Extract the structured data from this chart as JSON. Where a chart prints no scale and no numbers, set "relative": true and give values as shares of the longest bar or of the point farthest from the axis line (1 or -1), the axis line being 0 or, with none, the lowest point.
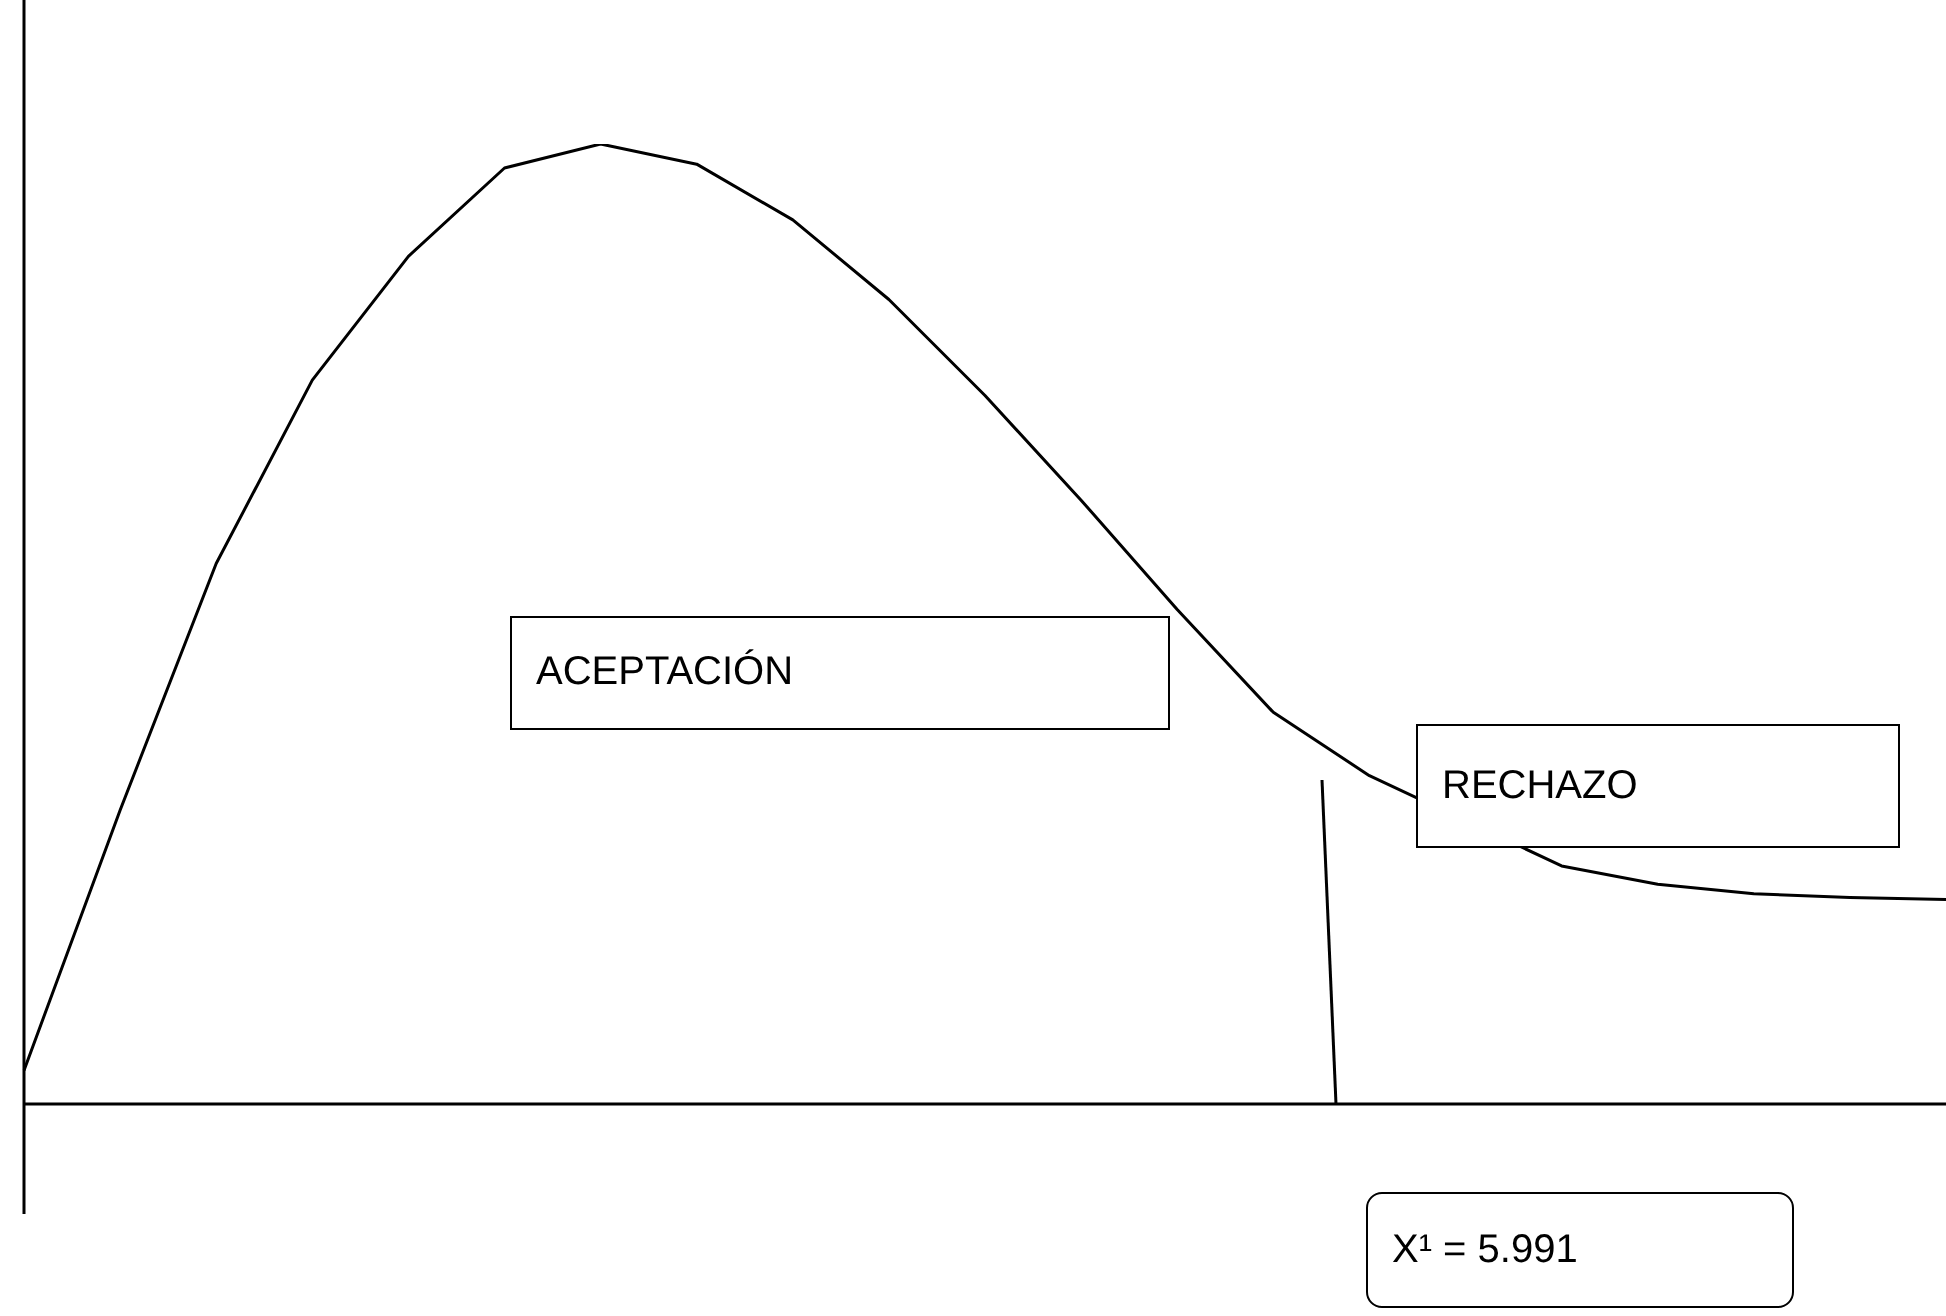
{
  "chart_data": {
    "type": "line",
    "relative": true,
    "legend": false,
    "marker": "none",
    "line_style": "solid",
    "categories": [
      null,
      null,
      null,
      null,
      null,
      null,
      null,
      null,
      null,
      null,
      null,
      null,
      null,
      null,
      null,
      null,
      null,
      null,
      null,
      null,
      null
    ],
    "series": [
      {
        "color": "#000000",
        "values": [
          0.035,
          0.306,
          0.563,
          0.754,
          0.883,
          0.975,
          1,
          0.979,
          0.921,
          0.838,
          0.738,
          0.629,
          0.515,
          0.408,
          0.342,
          null,
          0.248,
          0.229,
          0.219,
          0.215,
          0.213
        ]
      }
    ],
    "annotations": [
      "ACEPTACIÓN",
      "RECHAZO",
      "X¹ = 5.991"
    ]
  }
}
